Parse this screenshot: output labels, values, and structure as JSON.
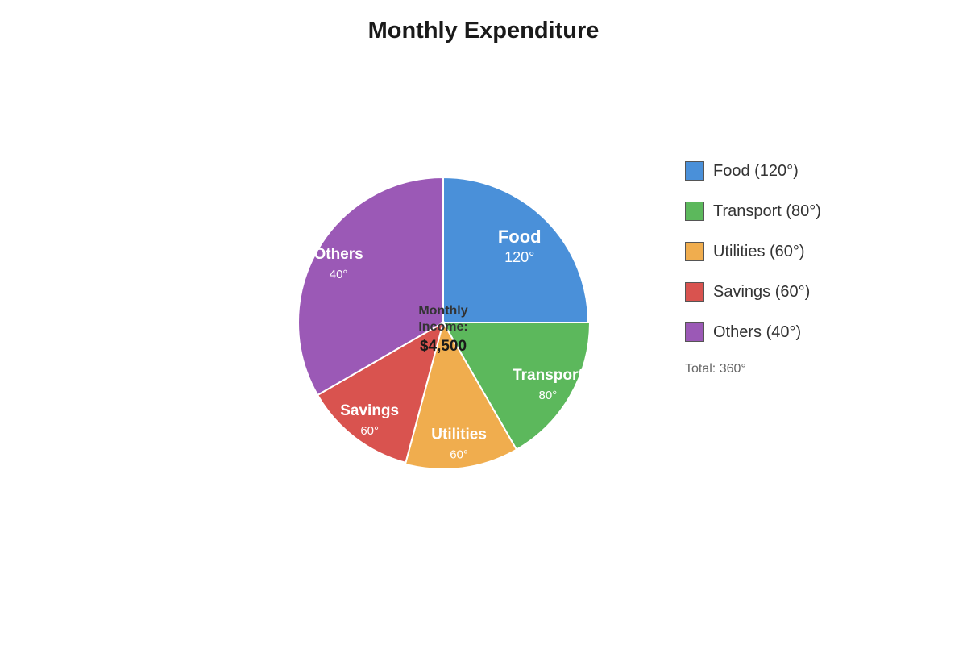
{
  "chart_data": {
    "type": "pie",
    "title": "Monthly Expenditure",
    "unit": "°",
    "slices": [
      {
        "label": "Food",
        "value": 120,
        "color": "#4a90d9",
        "legend": "Food (120°)",
        "value_label": "120°"
      },
      {
        "label": "Transport",
        "value": 80,
        "color": "#5cb85c",
        "legend": "Transport (80°)",
        "value_label": "80°"
      },
      {
        "label": "Utilities",
        "value": 60,
        "color": "#f0ad4e",
        "legend": "Utilities (60°)",
        "value_label": "60°"
      },
      {
        "label": "Savings",
        "value": 60,
        "color": "#d9534f",
        "legend": "Savings (60°)",
        "value_label": "60°"
      },
      {
        "label": "Others",
        "value": 40,
        "color": "#9b59b6",
        "legend": "Others (40°)",
        "value_label": "40°"
      }
    ],
    "center_label": {
      "line1": "Monthly",
      "line2": "Income:",
      "amount": "$4,500"
    },
    "total_label": "Total: 360°",
    "legend_position": "right"
  }
}
